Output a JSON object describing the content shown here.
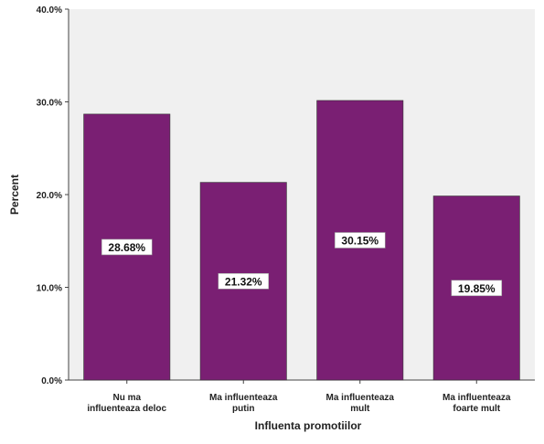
{
  "chart_data": {
    "type": "bar",
    "categories": [
      [
        "Nu ma",
        "influenteaza deloc"
      ],
      [
        "Ma influenteaza",
        "putin"
      ],
      [
        "Ma influenteaza",
        "mult"
      ],
      [
        "Ma influenteaza",
        "foarte mult"
      ]
    ],
    "values": [
      28.68,
      21.32,
      30.15,
      19.85
    ],
    "data_labels": [
      "28.68%",
      "21.32%",
      "30.15%",
      "19.85%"
    ],
    "y_ticks": [
      0,
      10,
      20,
      30,
      40
    ],
    "y_tick_labels": [
      "0.0%",
      "10.0%",
      "20.0%",
      "30.0%",
      "40.0%"
    ],
    "ylim": [
      0,
      40
    ],
    "xlabel": "Influenta promotiilor",
    "ylabel": "Percent",
    "grid": false,
    "colors": {
      "bar": "#7a1f73",
      "plot_background": "#f0f0f0",
      "axis": "#444444",
      "label_box": "#ffffff"
    }
  }
}
